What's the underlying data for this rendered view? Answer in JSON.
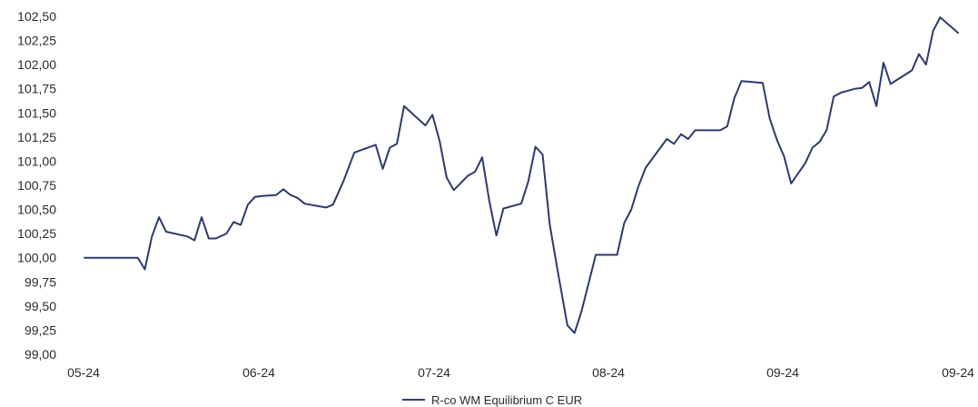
{
  "chart_data": {
    "type": "line",
    "title": "",
    "xlabel": "",
    "ylabel": "",
    "ylim": [
      99.0,
      102.5
    ],
    "y_ticks": [
      "99,00",
      "99,25",
      "99,50",
      "99,75",
      "100,00",
      "100,25",
      "100,50",
      "100,75",
      "101,00",
      "101,25",
      "101,50",
      "101,75",
      "102,00",
      "102,25",
      "102,50"
    ],
    "x_ticks": [
      "05-24",
      "06-24",
      "07-24",
      "08-24",
      "09-24",
      "09-24"
    ],
    "grid": false,
    "legend_position": "bottom-center",
    "line_color": "#2e3a6e",
    "series": [
      {
        "name": "R-co WM Equilibrium C EUR",
        "points": [
          [
            0,
            100.0
          ],
          [
            5,
            100.0
          ],
          [
            10,
            100.0
          ],
          [
            15,
            100.0
          ],
          [
            17,
            99.88
          ],
          [
            19,
            100.22
          ],
          [
            21,
            100.42
          ],
          [
            23,
            100.27
          ],
          [
            29,
            100.22
          ],
          [
            31,
            100.18
          ],
          [
            33,
            100.42
          ],
          [
            35,
            100.2
          ],
          [
            37,
            100.2
          ],
          [
            40,
            100.25
          ],
          [
            42,
            100.37
          ],
          [
            44,
            100.34
          ],
          [
            46,
            100.55
          ],
          [
            48,
            100.63
          ],
          [
            50,
            100.64
          ],
          [
            54,
            100.65
          ],
          [
            56,
            100.71
          ],
          [
            58,
            100.65
          ],
          [
            60,
            100.62
          ],
          [
            62,
            100.56
          ],
          [
            68,
            100.52
          ],
          [
            70,
            100.55
          ],
          [
            73,
            100.8
          ],
          [
            76,
            101.09
          ],
          [
            82,
            101.17
          ],
          [
            84,
            100.92
          ],
          [
            86,
            101.14
          ],
          [
            88,
            101.18
          ],
          [
            90,
            101.57
          ],
          [
            96,
            101.37
          ],
          [
            98,
            101.48
          ],
          [
            100,
            101.21
          ],
          [
            102,
            100.83
          ],
          [
            104,
            100.7
          ],
          [
            108,
            100.85
          ],
          [
            110,
            100.89
          ],
          [
            112,
            101.04
          ],
          [
            114,
            100.59
          ],
          [
            116,
            100.23
          ],
          [
            118,
            100.51
          ],
          [
            123,
            100.56
          ],
          [
            125,
            100.79
          ],
          [
            127,
            101.15
          ],
          [
            129,
            101.07
          ],
          [
            131,
            100.35
          ],
          [
            133,
            99.92
          ],
          [
            136,
            99.3
          ],
          [
            138,
            99.22
          ],
          [
            140,
            99.45
          ],
          [
            144,
            100.03
          ],
          [
            150,
            100.03
          ],
          [
            152,
            100.36
          ],
          [
            154,
            100.5
          ],
          [
            156,
            100.74
          ],
          [
            158,
            100.93
          ],
          [
            164,
            101.23
          ],
          [
            166,
            101.18
          ],
          [
            168,
            101.28
          ],
          [
            170,
            101.23
          ],
          [
            172,
            101.32
          ],
          [
            179,
            101.32
          ],
          [
            181,
            101.36
          ],
          [
            183,
            101.65
          ],
          [
            185,
            101.83
          ],
          [
            191,
            101.81
          ],
          [
            193,
            101.44
          ],
          [
            195,
            101.22
          ],
          [
            197,
            101.05
          ],
          [
            199,
            100.77
          ],
          [
            203,
            100.98
          ],
          [
            205,
            101.14
          ],
          [
            207,
            101.2
          ],
          [
            209,
            101.32
          ],
          [
            211,
            101.67
          ],
          [
            213,
            101.71
          ],
          [
            217,
            101.75
          ],
          [
            219,
            101.76
          ],
          [
            221,
            101.82
          ],
          [
            223,
            101.57
          ],
          [
            225,
            102.02
          ],
          [
            227,
            101.8
          ],
          [
            233,
            101.94
          ],
          [
            235,
            102.11
          ],
          [
            237,
            102.0
          ],
          [
            239,
            102.35
          ],
          [
            241,
            102.49
          ],
          [
            246,
            102.33
          ]
        ]
      }
    ]
  }
}
